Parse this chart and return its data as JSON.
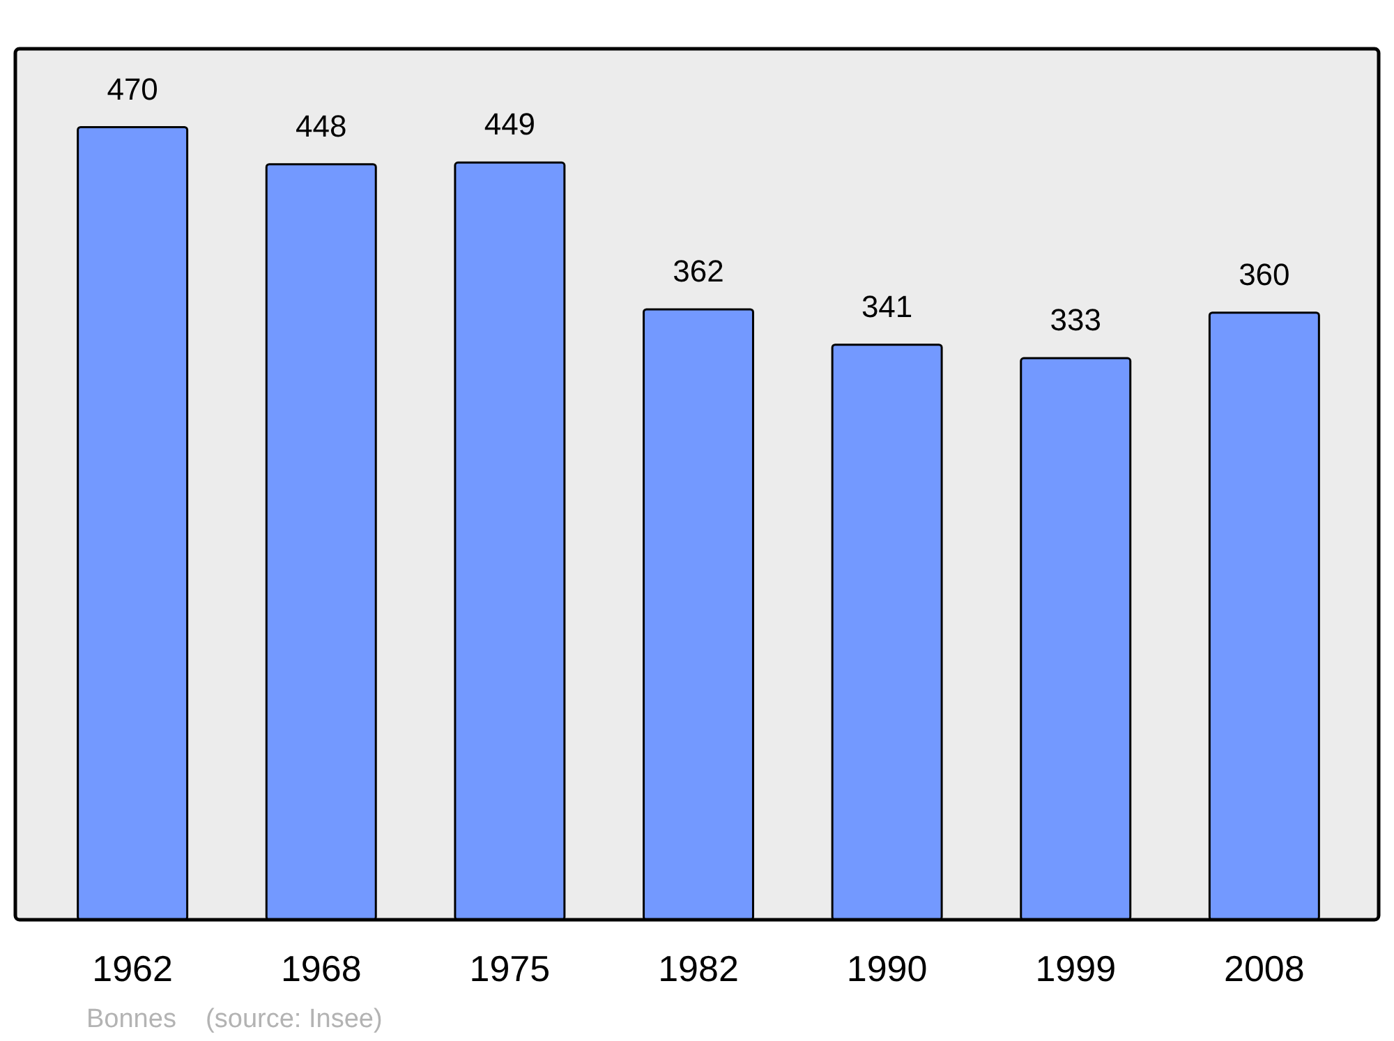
{
  "chart_data": {
    "type": "bar",
    "categories": [
      "1962",
      "1968",
      "1975",
      "1982",
      "1990",
      "1999",
      "2008"
    ],
    "values": [
      470,
      448,
      449,
      362,
      341,
      333,
      360
    ],
    "color": "#7399ff",
    "data_labels": true,
    "annotations": [
      "Bonnes    (source: Insee)"
    ]
  }
}
